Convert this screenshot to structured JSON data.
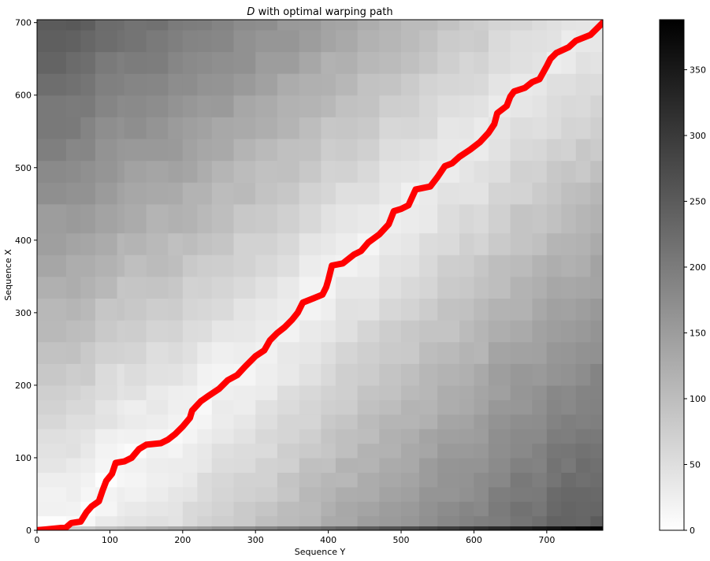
{
  "chart_data": {
    "type": "heatmap",
    "title_math": "D",
    "title_rest": " with optimal warping path",
    "xlabel": "Sequence Y",
    "ylabel": "Sequence X",
    "xlim": [
      0,
      777
    ],
    "ylim": [
      0,
      704
    ],
    "xticks": [
      0,
      100,
      200,
      300,
      400,
      500,
      600,
      700
    ],
    "yticks": [
      0,
      100,
      200,
      300,
      400,
      500,
      600,
      700
    ],
    "colormap": "gray_r",
    "colorbar": {
      "min": 0,
      "max": 388,
      "ticks": [
        0,
        50,
        100,
        150,
        200,
        250,
        300,
        350
      ]
    },
    "path_color": "#ff0000",
    "warping_path": {
      "name": "optimal warping path",
      "points": [
        [
          0,
          0
        ],
        [
          40,
          4
        ],
        [
          47,
          10
        ],
        [
          60,
          12
        ],
        [
          68,
          25
        ],
        [
          75,
          33
        ],
        [
          85,
          40
        ],
        [
          90,
          55
        ],
        [
          95,
          68
        ],
        [
          103,
          78
        ],
        [
          108,
          93
        ],
        [
          120,
          95
        ],
        [
          130,
          100
        ],
        [
          140,
          112
        ],
        [
          150,
          118
        ],
        [
          170,
          120
        ],
        [
          180,
          125
        ],
        [
          190,
          133
        ],
        [
          200,
          143
        ],
        [
          210,
          155
        ],
        [
          213,
          165
        ],
        [
          225,
          178
        ],
        [
          235,
          185
        ],
        [
          250,
          195
        ],
        [
          262,
          207
        ],
        [
          275,
          214
        ],
        [
          285,
          225
        ],
        [
          300,
          240
        ],
        [
          312,
          248
        ],
        [
          320,
          262
        ],
        [
          330,
          272
        ],
        [
          340,
          280
        ],
        [
          350,
          290
        ],
        [
          358,
          300
        ],
        [
          365,
          314
        ],
        [
          380,
          320
        ],
        [
          392,
          325
        ],
        [
          397,
          335
        ],
        [
          400,
          345
        ],
        [
          405,
          365
        ],
        [
          420,
          368
        ],
        [
          435,
          380
        ],
        [
          445,
          385
        ],
        [
          455,
          397
        ],
        [
          470,
          408
        ],
        [
          483,
          422
        ],
        [
          490,
          440
        ],
        [
          500,
          443
        ],
        [
          510,
          448
        ],
        [
          520,
          470
        ],
        [
          540,
          474
        ],
        [
          550,
          487
        ],
        [
          560,
          502
        ],
        [
          570,
          506
        ],
        [
          580,
          515
        ],
        [
          595,
          525
        ],
        [
          608,
          535
        ],
        [
          620,
          548
        ],
        [
          628,
          560
        ],
        [
          632,
          575
        ],
        [
          645,
          585
        ],
        [
          650,
          598
        ],
        [
          655,
          605
        ],
        [
          670,
          610
        ],
        [
          680,
          618
        ],
        [
          690,
          622
        ],
        [
          700,
          640
        ],
        [
          705,
          650
        ],
        [
          713,
          658
        ],
        [
          730,
          666
        ],
        [
          740,
          675
        ],
        [
          760,
          683
        ],
        [
          777,
          700
        ]
      ]
    }
  }
}
